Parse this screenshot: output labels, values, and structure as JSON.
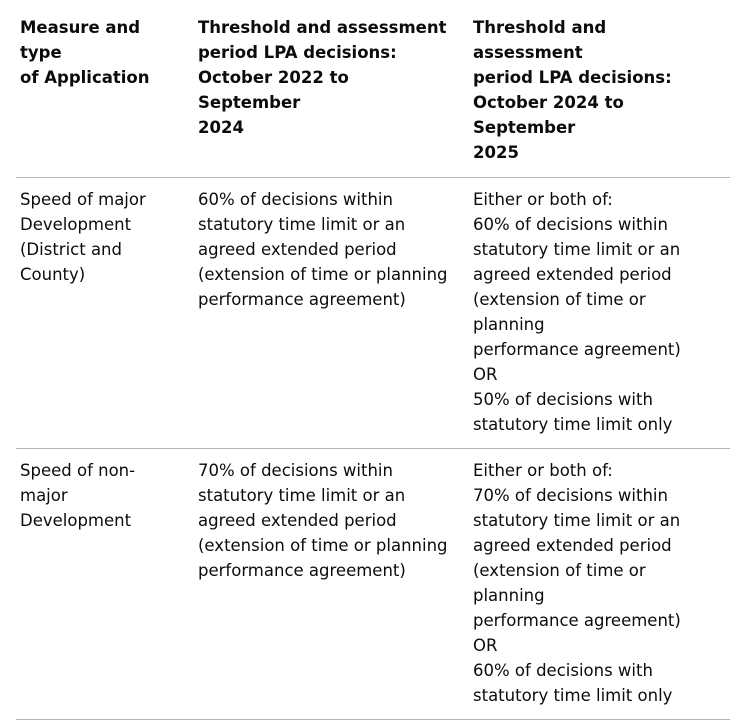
{
  "colors": {
    "text": "#0b0c0c",
    "border": "#b1b4b6",
    "background": "#ffffff"
  },
  "table": {
    "columns": [
      {
        "label": "Measure and type\nof Application"
      },
      {
        "label": "Threshold and assessment\nperiod LPA decisions:\nOctober 2022 to September\n2024"
      },
      {
        "label": "Threshold and assessment\nperiod LPA decisions:\nOctober 2024 to September\n2025"
      }
    ],
    "rows": [
      {
        "cells": [
          "Speed of major\nDevelopment\n(District and\nCounty)",
          "60% of decisions within\nstatutory time limit or an\nagreed extended period\n(extension of time or planning\nperformance agreement)",
          "Either or both of:\n60% of decisions within\nstatutory time limit or an\nagreed extended period\n(extension of time or planning\nperformance agreement)\nOR\n50% of decisions with\nstatutory time limit only"
        ]
      },
      {
        "cells": [
          "Speed of non-major\nDevelopment",
          "70% of decisions within\nstatutory time limit or an\nagreed extended period\n(extension of time or planning\nperformance agreement)",
          "Either or both of:\n70% of decisions within\nstatutory time limit or an\nagreed extended period\n(extension of time or planning\nperformance agreement)\nOR\n60% of decisions with\nstatutory time limit only"
        ]
      }
    ]
  }
}
